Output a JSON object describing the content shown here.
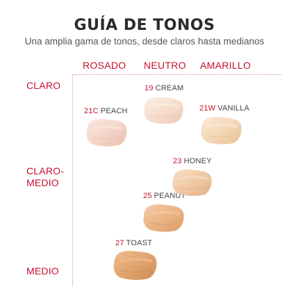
{
  "header": {
    "title": "GUÍA DE TONOS",
    "subtitle": "Una amplia gama de tonos, desde claros hasta medianos"
  },
  "columns": [
    "ROSADO",
    "NEUTRO",
    "AMARILLO"
  ],
  "rows": {
    "claro": "CLARO",
    "claro_medio_line1": "CLARO-",
    "claro_medio_line2": "MEDIO",
    "medio": "MEDIO"
  },
  "shades": {
    "peach": {
      "code": "21C",
      "name": "PEACH",
      "color": "#f4d3c6",
      "highlight": "#fbe9e1",
      "shadow": "#e9bfae"
    },
    "cream": {
      "code": "19",
      "name": "CREAM",
      "color": "#f6dccb",
      "highlight": "#fcefe4",
      "shadow": "#ecc9b3"
    },
    "vanilla": {
      "code": "21W",
      "name": "VANILLA",
      "color": "#f3d6b4",
      "highlight": "#faeadb",
      "shadow": "#e7c197"
    },
    "honey": {
      "code": "23",
      "name": "HONEY",
      "color": "#efc7a3",
      "highlight": "#f8dec6",
      "shadow": "#e2b185"
    },
    "peanut": {
      "code": "25",
      "name": "PEANUT",
      "color": "#e9b383",
      "highlight": "#f4cba5",
      "shadow": "#d99c68"
    },
    "toast": {
      "code": "27",
      "name": "TOAST",
      "color": "#e0a26e",
      "highlight": "#eebd8e",
      "shadow": "#cf8c57"
    }
  },
  "colors": {
    "accent": "#c8102e",
    "grid_line": "#e38a97",
    "text": "#333333"
  }
}
